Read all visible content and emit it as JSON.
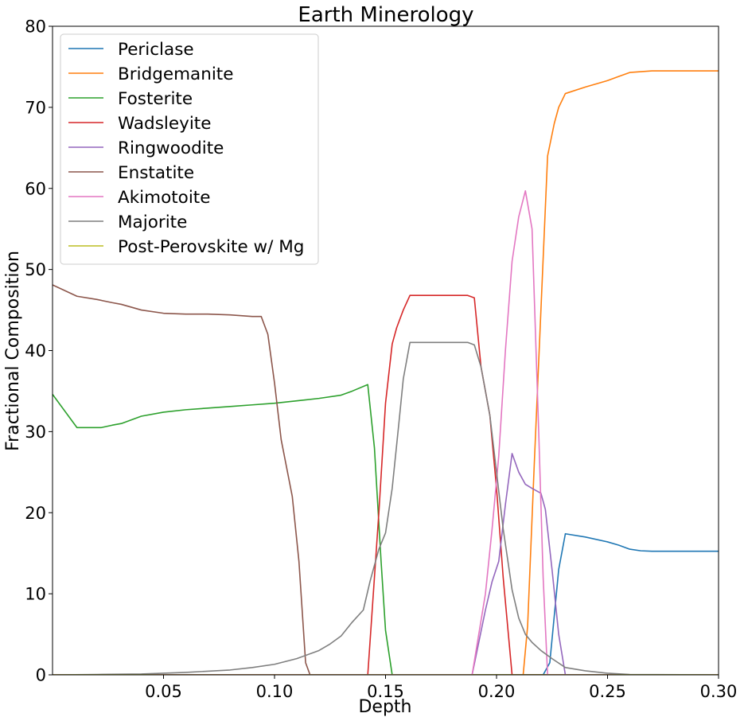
{
  "chart_data": {
    "type": "line",
    "title": "Earth Minerology",
    "xlabel": "Depth",
    "ylabel": "Fractional Composition",
    "xlim": [
      0.0,
      0.3
    ],
    "ylim": [
      0,
      80
    ],
    "xticks": [
      0.05,
      0.1,
      0.15,
      0.2,
      0.25,
      0.3
    ],
    "xtick_labels": [
      "0.05",
      "0.10",
      "0.15",
      "0.20",
      "0.25",
      "0.30"
    ],
    "yticks": [
      0,
      10,
      20,
      30,
      40,
      50,
      60,
      70,
      80
    ],
    "ytick_labels": [
      "0",
      "10",
      "20",
      "30",
      "40",
      "50",
      "60",
      "70",
      "80"
    ],
    "grid": false,
    "legend_position": "top-left",
    "series": [
      {
        "name": "Periclase",
        "color": "#1f77b4",
        "x": [
          0.0,
          0.221,
          0.224,
          0.228,
          0.231,
          0.24,
          0.25,
          0.255,
          0.26,
          0.265,
          0.27,
          0.28,
          0.29,
          0.3
        ],
        "y": [
          0,
          0,
          1.5,
          13,
          17.4,
          17.0,
          16.4,
          16.0,
          15.5,
          15.3,
          15.25,
          15.25,
          15.25,
          15.25
        ]
      },
      {
        "name": "Bridgemanite",
        "color": "#ff7f0e",
        "x": [
          0.0,
          0.212,
          0.214,
          0.217,
          0.22,
          0.223,
          0.226,
          0.228,
          0.231,
          0.24,
          0.25,
          0.255,
          0.26,
          0.265,
          0.27,
          0.28,
          0.29,
          0.3
        ],
        "y": [
          0,
          0,
          6,
          26,
          45,
          64,
          68,
          70,
          71.7,
          72.5,
          73.3,
          73.8,
          74.3,
          74.4,
          74.5,
          74.5,
          74.5,
          74.5
        ]
      },
      {
        "name": "Fosterite",
        "color": "#2ca02c",
        "x": [
          0.0,
          0.011,
          0.022,
          0.027,
          0.031,
          0.04,
          0.05,
          0.06,
          0.07,
          0.08,
          0.09,
          0.1,
          0.11,
          0.12,
          0.13,
          0.135,
          0.142,
          0.145,
          0.148,
          0.15,
          0.153,
          0.16,
          0.3
        ],
        "y": [
          34.6,
          30.5,
          30.5,
          30.8,
          31.0,
          31.9,
          32.4,
          32.7,
          32.9,
          33.1,
          33.3,
          33.5,
          33.8,
          34.1,
          34.5,
          35.0,
          35.8,
          28,
          14,
          5.5,
          0,
          0,
          0
        ]
      },
      {
        "name": "Wadsleyite",
        "color": "#d62728",
        "x": [
          0.0,
          0.142,
          0.147,
          0.15,
          0.153,
          0.155,
          0.158,
          0.161,
          0.17,
          0.18,
          0.187,
          0.19,
          0.193,
          0.197,
          0.2,
          0.203,
          0.207,
          0.21,
          0.3
        ],
        "y": [
          0,
          0,
          20,
          33.5,
          40.8,
          42.8,
          45,
          46.8,
          46.8,
          46.8,
          46.8,
          46.5,
          38,
          32,
          23,
          12,
          0,
          0,
          0
        ]
      },
      {
        "name": "Ringwoodite",
        "color": "#9467bd",
        "x": [
          0.0,
          0.189,
          0.192,
          0.195,
          0.198,
          0.201,
          0.204,
          0.207,
          0.21,
          0.213,
          0.216,
          0.22,
          0.222,
          0.225,
          0.228,
          0.231,
          0.3
        ],
        "y": [
          0,
          0,
          4,
          8,
          11.5,
          14,
          21,
          27.3,
          25,
          23.5,
          23,
          22.4,
          20.4,
          13,
          5,
          0,
          0
        ]
      },
      {
        "name": "Enstatite",
        "color": "#8c564b",
        "x": [
          0.0,
          0.011,
          0.02,
          0.027,
          0.031,
          0.04,
          0.05,
          0.06,
          0.07,
          0.08,
          0.09,
          0.094,
          0.097,
          0.1,
          0.103,
          0.108,
          0.111,
          0.114,
          0.116,
          0.3
        ],
        "y": [
          48.1,
          46.7,
          46.3,
          45.9,
          45.7,
          45.0,
          44.6,
          44.5,
          44.5,
          44.4,
          44.2,
          44.2,
          42,
          36,
          29,
          22,
          14,
          1.5,
          0,
          0
        ]
      },
      {
        "name": "Akimotoite",
        "color": "#e377c2",
        "x": [
          0.0,
          0.189,
          0.192,
          0.195,
          0.198,
          0.201,
          0.204,
          0.207,
          0.21,
          0.213,
          0.216,
          0.219,
          0.221,
          0.223,
          0.3
        ],
        "y": [
          0,
          0,
          5,
          10,
          18,
          27,
          40,
          51,
          56.5,
          59.7,
          55,
          30,
          12,
          0,
          0
        ]
      },
      {
        "name": "Majorite",
        "color": "#7f7f7f",
        "x": [
          0.0,
          0.02,
          0.04,
          0.06,
          0.08,
          0.09,
          0.1,
          0.11,
          0.12,
          0.125,
          0.13,
          0.135,
          0.14,
          0.143,
          0.147,
          0.15,
          0.153,
          0.156,
          0.158,
          0.161,
          0.17,
          0.18,
          0.187,
          0.19,
          0.193,
          0.197,
          0.2,
          0.203,
          0.207,
          0.21,
          0.213,
          0.216,
          0.22,
          0.225,
          0.231,
          0.24,
          0.25,
          0.26,
          0.3
        ],
        "y": [
          0,
          0.05,
          0.1,
          0.3,
          0.6,
          0.9,
          1.3,
          2.0,
          3.0,
          3.8,
          4.8,
          6.5,
          8.0,
          11.5,
          15.5,
          17.5,
          23,
          31,
          36.5,
          41,
          41,
          41,
          41,
          40.7,
          38,
          32,
          25,
          18,
          10.5,
          7,
          5,
          4,
          3,
          2,
          0.9,
          0.5,
          0.2,
          0.05,
          0
        ]
      },
      {
        "name": "Post-Perovskite w/ Mg",
        "color": "#bcbd22",
        "x": [
          0.0,
          0.3
        ],
        "y": [
          0,
          0
        ]
      }
    ]
  }
}
